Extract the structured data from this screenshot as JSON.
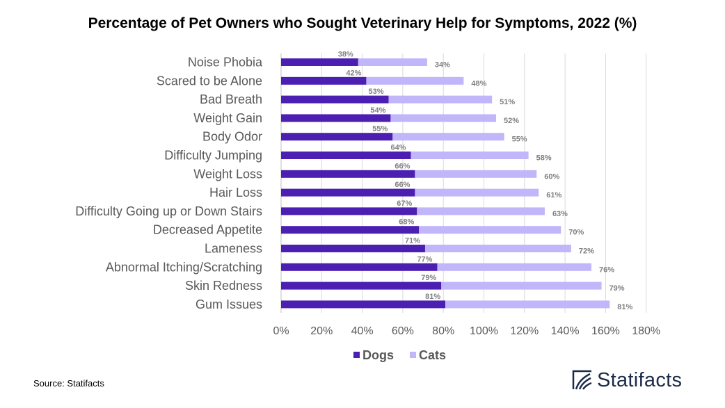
{
  "chart_data": {
    "type": "bar",
    "orientation": "horizontal",
    "stacked": true,
    "title": "Percentage of Pet Owners who Sought Veterinary Help for Symptoms, 2022 (%)",
    "categories": [
      "Noise Phobia",
      "Scared to be Alone",
      "Bad Breath",
      "Weight Gain",
      "Body Odor",
      "Difficulty Jumping",
      "Weight Loss",
      "Hair Loss",
      "Difficulty Going up or Down Stairs",
      "Decreased Appetite",
      "Lameness",
      "Abnormal Itching/Scratching",
      "Skin Redness",
      "Gum Issues"
    ],
    "series": [
      {
        "name": "Dogs",
        "color": "#4b1fb1",
        "values": [
          38,
          42,
          53,
          54,
          55,
          64,
          66,
          66,
          67,
          68,
          71,
          77,
          79,
          81
        ]
      },
      {
        "name": "Cats",
        "color": "#c1b6fa",
        "values": [
          34,
          48,
          51,
          52,
          55,
          58,
          60,
          61,
          63,
          70,
          72,
          76,
          79,
          81
        ]
      }
    ],
    "xlim": [
      0,
      180
    ],
    "xticks": [
      "0%",
      "20%",
      "40%",
      "60%",
      "80%",
      "100%",
      "120%",
      "140%",
      "160%",
      "180%"
    ],
    "value_suffix": "%",
    "grid": "vertical",
    "legend_position": "bottom"
  },
  "source": "Source: Statifacts",
  "brand": "Statifacts"
}
